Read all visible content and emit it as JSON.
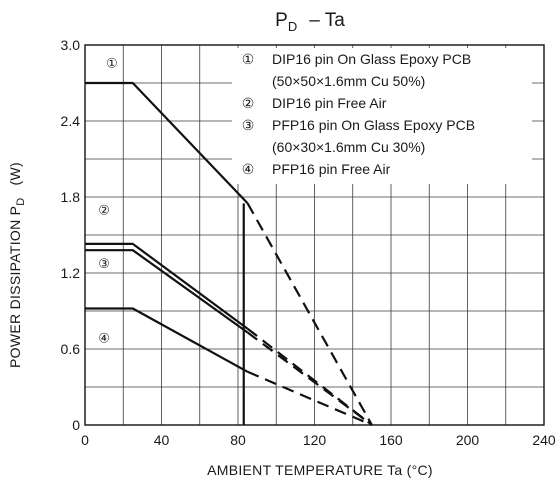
{
  "chart_data": {
    "type": "line",
    "title": "PD – Ta",
    "title_main": "P",
    "title_sub": "D",
    "title_rest": "–  Ta",
    "xlabel": "AMBIENT TEMPERATURE   Ta    (°C)",
    "ylabel_main": "POWER DISSIPATION  P",
    "ylabel_sub": "D",
    "ylabel_unit": "(W)",
    "xlim": [
      0,
      240
    ],
    "ylim": [
      0,
      3.0
    ],
    "x_ticks": [
      0,
      40,
      80,
      120,
      160,
      200,
      240
    ],
    "x_tick_labels": [
      "0",
      "40",
      "80",
      "120",
      "160",
      "200",
      "240"
    ],
    "y_ticks": [
      0,
      0.6,
      1.2,
      1.8,
      2.4,
      3.0
    ],
    "y_tick_labels": [
      "0",
      "0.6",
      "1.2",
      "1.8",
      "2.4",
      "3.0"
    ],
    "x_minor_step": 20,
    "y_minor_step": 0.3,
    "grid": true,
    "legend_position": "top-right",
    "series": [
      {
        "marker": "①",
        "solid": [
          [
            0,
            2.7
          ],
          [
            25,
            2.7
          ],
          [
            85,
            1.75
          ]
        ],
        "dashed": [
          [
            85,
            1.75
          ],
          [
            150,
            0
          ]
        ]
      },
      {
        "marker": "②",
        "solid": [
          [
            0,
            1.43
          ],
          [
            25,
            1.43
          ],
          [
            85,
            0.76
          ]
        ],
        "dashed": [
          [
            85,
            0.76
          ],
          [
            150,
            0
          ]
        ]
      },
      {
        "marker": "③",
        "solid": [
          [
            0,
            1.38
          ],
          [
            25,
            1.38
          ],
          [
            85,
            0.73
          ]
        ],
        "dashed": [
          [
            85,
            0.73
          ],
          [
            150,
            0
          ]
        ]
      },
      {
        "marker": "④",
        "solid": [
          [
            0,
            0.92
          ],
          [
            25,
            0.92
          ],
          [
            85,
            0.42
          ]
        ],
        "dashed": [
          [
            85,
            0.42
          ],
          [
            150,
            0
          ]
        ]
      }
    ],
    "vertical_line": {
      "x": 83,
      "y0": 0,
      "y1": 1.75
    },
    "markers": [
      {
        "label": "①",
        "x": 14,
        "y": 2.86
      },
      {
        "label": "②",
        "x": 10,
        "y": 1.7
      },
      {
        "label": "③",
        "x": 10,
        "y": 1.28
      },
      {
        "label": "④",
        "x": 10,
        "y": 0.69
      }
    ],
    "legend": [
      {
        "marker": "①",
        "text": "DIP16 pin On Glass Epoxy PCB"
      },
      {
        "marker": "",
        "text": "(50×50×1.6mm Cu 50%)"
      },
      {
        "marker": "②",
        "text": "DIP16 pin Free Air"
      },
      {
        "marker": "③",
        "text": "PFP16 pin On Glass Epoxy PCB"
      },
      {
        "marker": "",
        "text": "(60×30×1.6mm Cu 30%)"
      },
      {
        "marker": "④",
        "text": "PFP16 pin Free Air"
      }
    ]
  }
}
